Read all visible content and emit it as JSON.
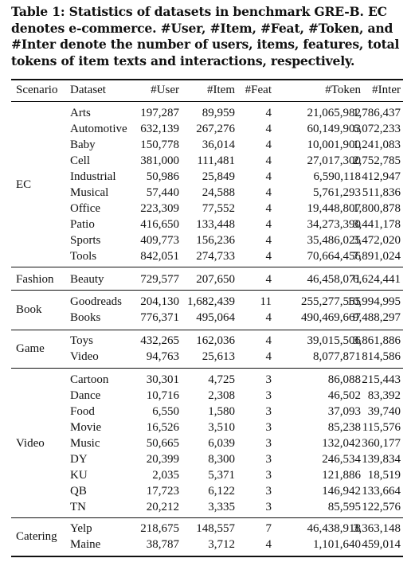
{
  "caption": "Table 1: Statistics of datasets in benchmark GRE-B. EC denotes e-commerce. #User, #Item, #Feat, #Token, and #Inter denote the number of users, items, features, total tokens of item texts and interactions, respectively.",
  "columns": [
    "Scenario",
    "Dataset",
    "#User",
    "#Item",
    "#Feat",
    "#Token",
    "#Inter"
  ],
  "groups": [
    {
      "scenario": "EC",
      "rows": [
        [
          "Arts",
          "197,287",
          "89,959",
          "4",
          "21,065,982",
          "1,786,437"
        ],
        [
          "Automotive",
          "632,139",
          "267,276",
          "4",
          "60,149,903",
          "6,072,233"
        ],
        [
          "Baby",
          "150,778",
          "36,014",
          "4",
          "10,001,900",
          "1,241,083"
        ],
        [
          "Cell",
          "381,000",
          "111,481",
          "4",
          "27,017,300",
          "2,752,785"
        ],
        [
          "Industrial",
          "50,986",
          "25,849",
          "4",
          "6,590,118",
          "412,947"
        ],
        [
          "Musical",
          "57,440",
          "24,588",
          "4",
          "5,761,293",
          "511,836"
        ],
        [
          "Office",
          "223,309",
          "77,552",
          "4",
          "19,448,807",
          "1,800,878"
        ],
        [
          "Patio",
          "416,650",
          "133,448",
          "4",
          "34,273,390",
          "3,441,178"
        ],
        [
          "Sports",
          "409,773",
          "156,236",
          "4",
          "35,486,025",
          "3,472,020"
        ],
        [
          "Tools",
          "842,051",
          "274,733",
          "4",
          "70,664,456",
          "7,891,024"
        ]
      ]
    },
    {
      "scenario": "Fashion",
      "rows": [
        [
          "Beauty",
          "729,577",
          "207,650",
          "4",
          "46,458,071",
          "6,624,441"
        ]
      ]
    },
    {
      "scenario": "Book",
      "rows": [
        [
          "Goodreads",
          "204,130",
          "1,682,439",
          "11",
          "255,277,555",
          "10,994,995"
        ],
        [
          "Books",
          "776,371",
          "495,064",
          "4",
          "490,469,667",
          "9,488,297"
        ]
      ]
    },
    {
      "scenario": "Game",
      "rows": [
        [
          "Toys",
          "432,265",
          "162,036",
          "4",
          "39,015,506",
          "3,861,886"
        ],
        [
          "Video",
          "94,763",
          "25,613",
          "4",
          "8,077,871",
          "814,586"
        ]
      ]
    },
    {
      "scenario": "Video",
      "rows": [
        [
          "Cartoon",
          "30,301",
          "4,725",
          "3",
          "86,088",
          "215,443"
        ],
        [
          "Dance",
          "10,716",
          "2,308",
          "3",
          "46,502",
          "83,392"
        ],
        [
          "Food",
          "6,550",
          "1,580",
          "3",
          "37,093",
          "39,740"
        ],
        [
          "Movie",
          "16,526",
          "3,510",
          "3",
          "85,238",
          "115,576"
        ],
        [
          "Music",
          "50,665",
          "6,039",
          "3",
          "132,042",
          "360,177"
        ],
        [
          "DY",
          "20,399",
          "8,300",
          "3",
          "246,534",
          "139,834"
        ],
        [
          "KU",
          "2,035",
          "5,371",
          "3",
          "121,886",
          "18,519"
        ],
        [
          "QB",
          "17,723",
          "6,122",
          "3",
          "146,942",
          "133,664"
        ],
        [
          "TN",
          "20,212",
          "3,335",
          "3",
          "85,595",
          "122,576"
        ]
      ]
    },
    {
      "scenario": "Catering",
      "rows": [
        [
          "Yelp",
          "218,675",
          "148,557",
          "7",
          "46,438,918",
          "3,363,148"
        ],
        [
          "Maine",
          "38,787",
          "3,712",
          "4",
          "1,101,640",
          "459,014"
        ]
      ]
    }
  ]
}
